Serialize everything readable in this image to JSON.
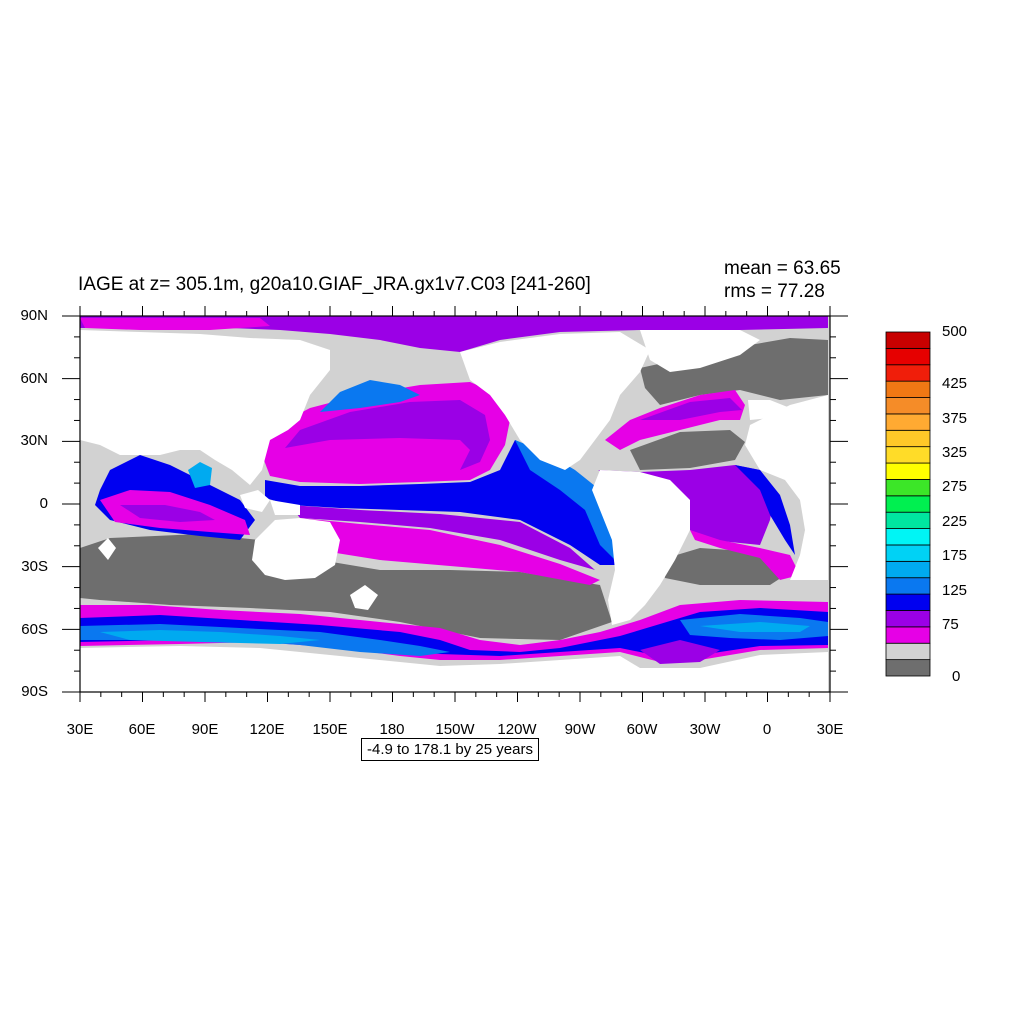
{
  "title": "IAGE at z= 305.1m, g20a10.GIAF_JRA.gx1v7.C03 [241-260]",
  "stats": {
    "mean": "mean = 63.65",
    "rms": "rms = 77.28"
  },
  "subtitle": "-4.9 to 178.1 by 25 years",
  "lat_labels": [
    "90N",
    "60N",
    "30N",
    "0",
    "30S",
    "60S",
    "90S"
  ],
  "lon_labels": [
    "30E",
    "60E",
    "90E",
    "120E",
    "150E",
    "180",
    "150W",
    "120W",
    "90W",
    "60W",
    "30W",
    "0",
    "30E"
  ],
  "colorbar": {
    "colors": [
      "#6e6e6e",
      "#d2d2d2",
      "#e600e6",
      "#9b00e6",
      "#0000f0",
      "#0a78f0",
      "#00aaf0",
      "#00d2f5",
      "#00f5f5",
      "#00e6a0",
      "#00f050",
      "#3ce628",
      "#ffff00",
      "#ffdc28",
      "#ffc828",
      "#ffaa32",
      "#f58c28",
      "#f07814",
      "#f01e0a",
      "#e60000",
      "#c80000"
    ],
    "labels": [
      "0",
      "75",
      "125",
      "175",
      "225",
      "275",
      "325",
      "375",
      "425",
      "500"
    ]
  },
  "colors": {
    "land": "#ffffff",
    "ocean_background": "#d2d2d2",
    "oldest": "#6e6e6e",
    "magenta": "#e600e6",
    "purple": "#9b00e6",
    "blue": "#0000f0",
    "mid_blue": "#0a78f0",
    "light_blue": "#00aaf0"
  }
}
